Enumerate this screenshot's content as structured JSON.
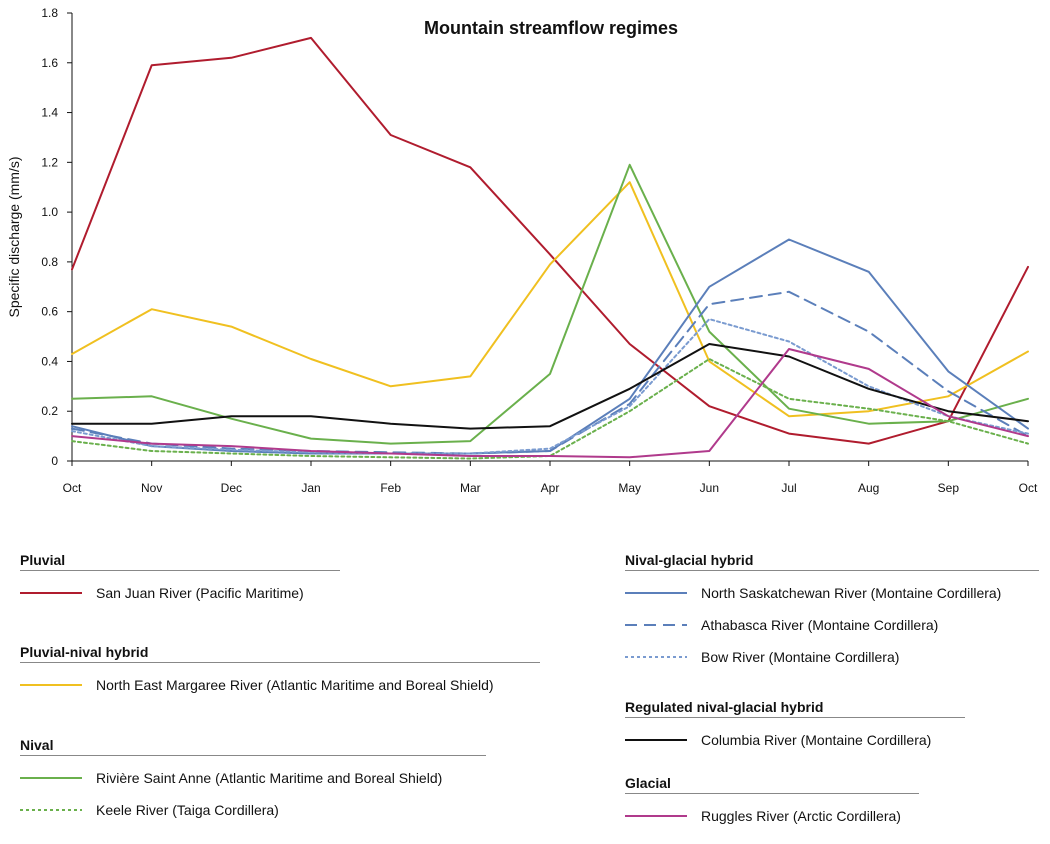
{
  "chart_data": {
    "type": "line",
    "title": "Mountain streamflow regimes",
    "xlabel": "",
    "ylabel": "Specific discharge (mm/s)",
    "ylim": [
      0,
      1.8
    ],
    "yticks": [
      "0",
      "0.2",
      "0.4",
      "0.6",
      "0.8",
      "1.0",
      "1.2",
      "1.4",
      "1.6",
      "1.8"
    ],
    "categories": [
      "Oct",
      "Nov",
      "Dec",
      "Jan",
      "Feb",
      "Mar",
      "Apr",
      "May",
      "Jun",
      "Jul",
      "Aug",
      "Sep",
      "Oct"
    ],
    "series": [
      {
        "name": "San Juan River (Pacific Maritime)",
        "group": "pluvial",
        "color": "#b01c2e",
        "dash": "solid",
        "values": [
          0.77,
          1.59,
          1.62,
          1.7,
          1.31,
          1.18,
          0.83,
          0.47,
          0.22,
          0.11,
          0.07,
          0.16,
          0.78
        ]
      },
      {
        "name": "North East Margaree River (Atlantic Maritime and Boreal Shield)",
        "group": "pluvial_nival",
        "color": "#f0c020",
        "dash": "solid",
        "values": [
          0.43,
          0.61,
          0.54,
          0.41,
          0.3,
          0.34,
          0.79,
          1.12,
          0.4,
          0.18,
          0.2,
          0.26,
          0.44
        ]
      },
      {
        "name": "Rivière Saint Anne (Atlantic Maritime and Boreal Shield)",
        "group": "nival",
        "color": "#6ab04c",
        "dash": "solid",
        "values": [
          0.25,
          0.26,
          0.17,
          0.09,
          0.07,
          0.08,
          0.35,
          1.19,
          0.52,
          0.21,
          0.15,
          0.16,
          0.25
        ]
      },
      {
        "name": "Keele River (Taiga Cordillera)",
        "group": "nival",
        "color": "#6ab04c",
        "dash": "dotted",
        "values": [
          0.08,
          0.04,
          0.03,
          0.02,
          0.015,
          0.01,
          0.02,
          0.2,
          0.41,
          0.25,
          0.21,
          0.16,
          0.07
        ]
      },
      {
        "name": "North Saskatchewan River (Montaine Cordillera)",
        "group": "nival_glacial",
        "color": "#5b7fba",
        "dash": "solid",
        "values": [
          0.14,
          0.06,
          0.04,
          0.03,
          0.03,
          0.03,
          0.04,
          0.25,
          0.7,
          0.89,
          0.76,
          0.36,
          0.13
        ]
      },
      {
        "name": "Athabasca River (Montaine Cordillera)",
        "group": "nival_glacial",
        "color": "#5b7fba",
        "dash": "dashed",
        "values": [
          0.13,
          0.07,
          0.05,
          0.04,
          0.035,
          0.03,
          0.04,
          0.23,
          0.63,
          0.68,
          0.52,
          0.28,
          0.1
        ]
      },
      {
        "name": "Bow River (Montaine Cordillera)",
        "group": "nival_glacial",
        "color": "#7a9bd0",
        "dash": "dotted",
        "values": [
          0.12,
          0.06,
          0.045,
          0.035,
          0.03,
          0.03,
          0.05,
          0.22,
          0.57,
          0.48,
          0.3,
          0.18,
          0.11
        ]
      },
      {
        "name": "Columbia River (Montaine Cordillera)",
        "group": "regulated",
        "color": "#111111",
        "dash": "solid",
        "values": [
          0.15,
          0.15,
          0.18,
          0.18,
          0.15,
          0.13,
          0.14,
          0.29,
          0.47,
          0.42,
          0.29,
          0.2,
          0.16
        ]
      },
      {
        "name": "Ruggles River (Arctic Cordillera)",
        "group": "glacial",
        "color": "#b03a8c",
        "dash": "solid",
        "values": [
          0.1,
          0.07,
          0.06,
          0.04,
          0.03,
          0.02,
          0.02,
          0.015,
          0.04,
          0.45,
          0.37,
          0.18,
          0.1
        ]
      }
    ]
  },
  "legend": {
    "pluvial": {
      "title": "Pluvial",
      "items": [
        "San Juan River (Pacific Maritime)"
      ]
    },
    "pluvial_nival": {
      "title": "Pluvial-nival hybrid",
      "items": [
        "North East Margaree River (Atlantic Maritime and Boreal Shield)"
      ]
    },
    "nival": {
      "title": "Nival",
      "items": [
        "Rivière Saint Anne (Atlantic Maritime and Boreal Shield)",
        "Keele River (Taiga Cordillera)"
      ]
    },
    "nival_glacial": {
      "title": "Nival-glacial hybrid",
      "items": [
        "North Saskatchewan River (Montaine Cordillera)",
        "Athabasca River (Montaine Cordillera)",
        "Bow River (Montaine Cordillera)"
      ]
    },
    "regulated": {
      "title": "Regulated nival-glacial hybrid",
      "items": [
        "Columbia River (Montaine Cordillera)"
      ]
    },
    "glacial": {
      "title": "Glacial",
      "items": [
        "Ruggles River (Arctic Cordillera)"
      ]
    }
  }
}
